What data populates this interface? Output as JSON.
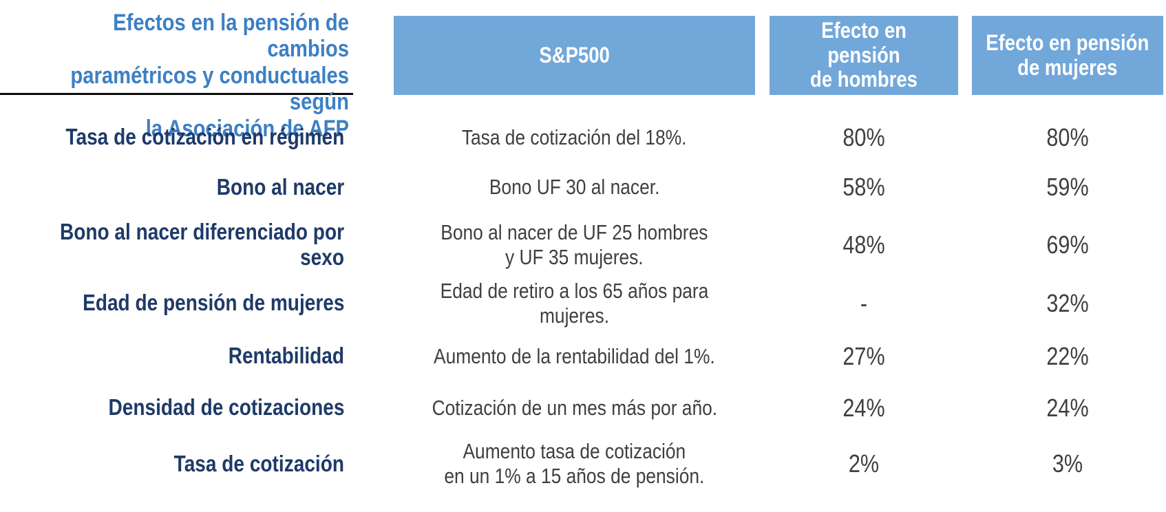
{
  "title": "Efectos en la pensión de cambios\nparamétricos y conductuales según\nla Asociación de AFP",
  "header": {
    "scenario": "S&P500",
    "men": "Efecto en pensión\nde hombres",
    "women": "Efecto en pensión\nde mujeres"
  },
  "rows": [
    {
      "label": "Tasa de cotización en régimen",
      "description": "Tasa de cotización del 18%.",
      "men": "80%",
      "women": "80%"
    },
    {
      "label": "Bono al nacer",
      "description": "Bono UF 30 al nacer.",
      "men": "58%",
      "women": "59%"
    },
    {
      "label": "Bono al nacer diferenciado por sexo",
      "description": "Bono al nacer de UF 25 hombres\ny UF 35 mujeres.",
      "men": "48%",
      "women": "69%"
    },
    {
      "label": "Edad de pensión de mujeres",
      "description": "Edad de retiro a los 65 años para mujeres.",
      "men": "-",
      "women": "32%"
    },
    {
      "label": "Rentabilidad",
      "description": "Aumento de la rentabilidad del 1%.",
      "men": "27%",
      "women": "22%"
    },
    {
      "label": "Densidad de cotizaciones",
      "description": "Cotización de un mes más por año.",
      "men": "24%",
      "women": "24%"
    },
    {
      "label": "Tasa de cotización",
      "description": "Aumento tasa de cotización\nen un 1% a 15 años de pensión.",
      "men": "2%",
      "women": "3%"
    }
  ],
  "colors": {
    "header_fill": "#72A7DA",
    "header_text": "#FFFFFF",
    "title_text": "#3C80C4",
    "label_text": "#1E3A68",
    "body_text": "#3F3F3F",
    "rule": "#0C0C0C"
  },
  "chart_data": {
    "type": "table",
    "title": "Efectos en la pensión de cambios paramétricos y conductuales según la Asociación de AFP",
    "columns": [
      "",
      "S&P500",
      "Efecto en pensión de hombres",
      "Efecto en pensión de mujeres"
    ],
    "rows": [
      [
        "Tasa de cotización en régimen",
        "Tasa de cotización del 18%.",
        "80%",
        "80%"
      ],
      [
        "Bono al nacer",
        "Bono UF 30 al nacer.",
        "58%",
        "59%"
      ],
      [
        "Bono al nacer diferenciado por sexo",
        "Bono al nacer de UF 25 hombres y UF 35 mujeres.",
        "48%",
        "69%"
      ],
      [
        "Edad de pensión de mujeres",
        "Edad de retiro a los 65 años para mujeres.",
        "-",
        "32%"
      ],
      [
        "Rentabilidad",
        "Aumento de la rentabilidad del 1%.",
        "27%",
        "22%"
      ],
      [
        "Densidad de cotizaciones",
        "Cotización de un mes más por año.",
        "24%",
        "24%"
      ],
      [
        "Tasa de cotización",
        "Aumento tasa de cotización en un 1% a 15 años de pensión.",
        "2%",
        "3%"
      ]
    ]
  }
}
